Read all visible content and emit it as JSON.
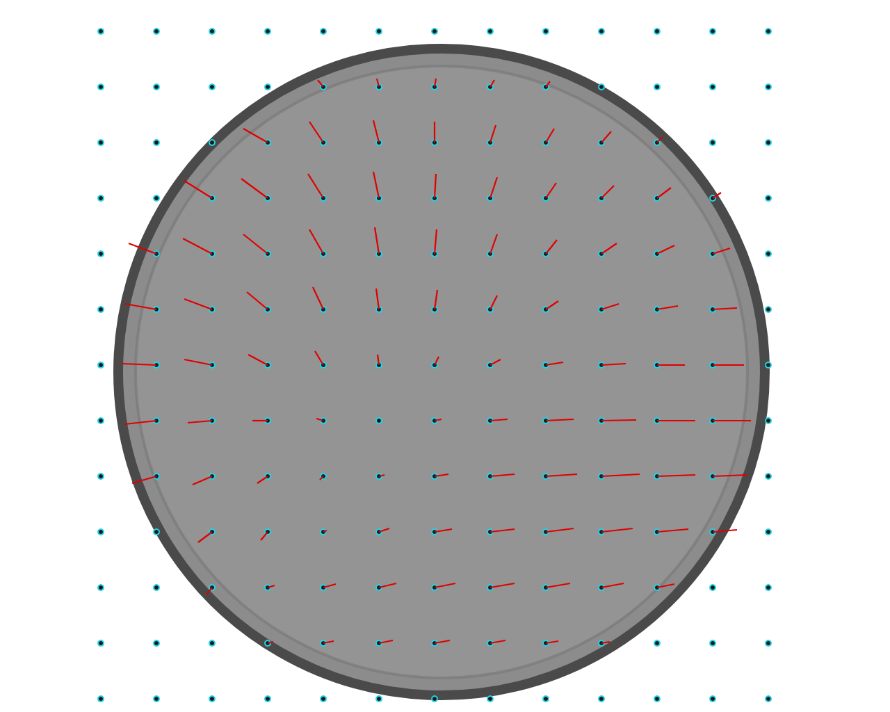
{
  "chart_data": {
    "type": "quiver",
    "color": "#e00000",
    "marker": "circle",
    "xlim": [
      0,
      1280
    ],
    "ylim": [
      0,
      1024
    ],
    "tick_labels": false,
    "grid": false,
    "x": [
      145,
      225,
      305,
      385,
      465,
      545,
      625,
      705,
      785,
      865,
      945,
      1025,
      1105
    ],
    "y": [
      45,
      125,
      205,
      285,
      365,
      445,
      525,
      605,
      685,
      765,
      845,
      925,
      1005
    ],
    "u": [
      [
        0,
        0,
        0,
        0,
        0,
        0,
        0,
        0,
        0,
        0,
        0,
        0,
        0
      ],
      [
        0,
        0,
        0,
        0,
        -8,
        -3,
        2,
        6,
        6,
        0,
        0,
        0,
        0
      ],
      [
        0,
        0,
        0,
        -35,
        -20,
        -8,
        0,
        8,
        12,
        14,
        8,
        0,
        0
      ],
      [
        0,
        0,
        -40,
        -38,
        -22,
        -8,
        2,
        10,
        15,
        18,
        20,
        12,
        0
      ],
      [
        0,
        -40,
        -42,
        -35,
        -20,
        -6,
        3,
        10,
        16,
        22,
        25,
        25,
        0
      ],
      [
        0,
        -45,
        -40,
        -30,
        -15,
        -4,
        4,
        10,
        18,
        25,
        30,
        35,
        0
      ],
      [
        0,
        -50,
        -40,
        -28,
        -12,
        -2,
        6,
        15,
        25,
        35,
        40,
        45,
        0
      ],
      [
        0,
        -45,
        -35,
        -22,
        -10,
        0,
        10,
        25,
        40,
        50,
        55,
        55,
        0
      ],
      [
        0,
        -35,
        -28,
        -15,
        -5,
        8,
        20,
        35,
        45,
        55,
        55,
        50,
        0
      ],
      [
        0,
        0,
        -20,
        -10,
        5,
        15,
        25,
        35,
        40,
        45,
        45,
        35,
        0
      ],
      [
        0,
        0,
        -8,
        10,
        18,
        25,
        30,
        35,
        35,
        32,
        25,
        0,
        0
      ],
      [
        0,
        0,
        0,
        8,
        15,
        20,
        22,
        22,
        18,
        12,
        0,
        0,
        0
      ],
      [
        0,
        0,
        0,
        0,
        0,
        0,
        0,
        0,
        0,
        0,
        0,
        0,
        0
      ]
    ],
    "v": [
      [
        0,
        0,
        0,
        0,
        0,
        0,
        0,
        0,
        0,
        0,
        0,
        0,
        0
      ],
      [
        0,
        0,
        0,
        0,
        -10,
        -12,
        -12,
        -10,
        -8,
        0,
        0,
        0,
        0
      ],
      [
        0,
        0,
        0,
        -20,
        -30,
        -32,
        -30,
        -25,
        -20,
        -16,
        -8,
        0,
        0
      ],
      [
        0,
        0,
        -25,
        -28,
        -35,
        -38,
        -35,
        -30,
        -22,
        -18,
        -15,
        -8,
        0
      ],
      [
        0,
        -15,
        -22,
        -28,
        -35,
        -38,
        -35,
        -28,
        -20,
        -15,
        -12,
        -8,
        0
      ],
      [
        0,
        -8,
        -15,
        -25,
        -32,
        -30,
        -28,
        -20,
        -12,
        -8,
        -5,
        -2,
        0
      ],
      [
        0,
        -2,
        -8,
        -15,
        -20,
        -15,
        -12,
        -8,
        -4,
        -2,
        0,
        0,
        0
      ],
      [
        0,
        5,
        3,
        0,
        -3,
        0,
        -2,
        -2,
        -2,
        -1,
        0,
        0,
        0
      ],
      [
        0,
        10,
        12,
        10,
        5,
        -2,
        -3,
        -3,
        -3,
        -3,
        -2,
        -2,
        0
      ],
      [
        0,
        0,
        15,
        12,
        -2,
        -5,
        -4,
        -4,
        -5,
        -5,
        -4,
        -3,
        0
      ],
      [
        0,
        0,
        10,
        -3,
        -5,
        -6,
        -6,
        -6,
        -6,
        -6,
        -5,
        0,
        0
      ],
      [
        0,
        0,
        0,
        -2,
        -3,
        -4,
        -4,
        -4,
        -3,
        -2,
        0,
        0,
        0
      ],
      [
        0,
        0,
        0,
        0,
        0,
        0,
        0,
        0,
        0,
        0,
        0,
        0,
        0
      ]
    ]
  }
}
